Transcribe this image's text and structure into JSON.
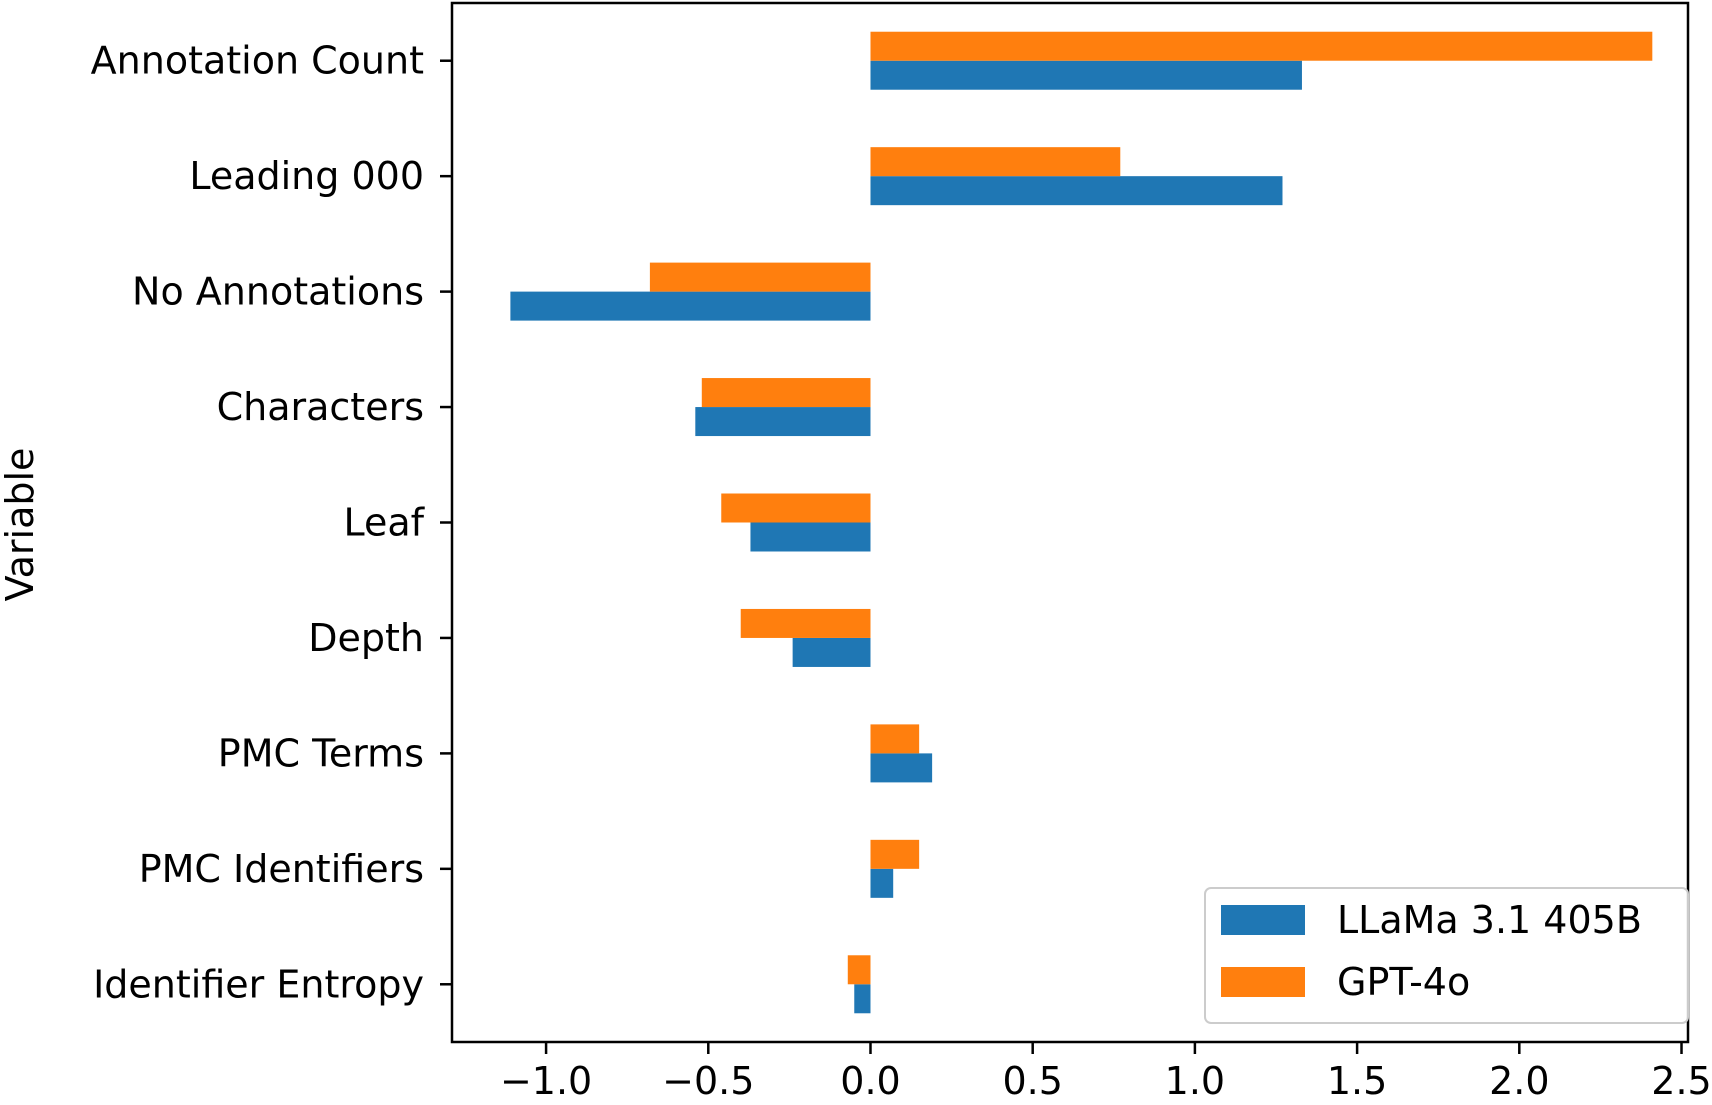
{
  "chart_data": {
    "type": "bar",
    "orientation": "horizontal",
    "title": "",
    "xlabel": "",
    "ylabel": "Variable",
    "categories": [
      "Annotation Count",
      "Leading 000",
      "No Annotations",
      "Characters",
      "Leaf",
      "Depth",
      "PMC Terms",
      "PMC Identifiers",
      "Identifier Entropy"
    ],
    "series": [
      {
        "name": "LLaMa 3.1 405B",
        "color": "#1f77b4",
        "values": [
          1.33,
          1.27,
          -1.11,
          -0.54,
          -0.37,
          -0.24,
          0.19,
          0.07,
          -0.05
        ]
      },
      {
        "name": "GPT-4o",
        "color": "#ff7f0e",
        "values": [
          2.41,
          0.77,
          -0.68,
          -0.52,
          -0.46,
          -0.4,
          0.15,
          0.15,
          -0.07
        ]
      }
    ],
    "xlim": [
      -1.29,
      2.52
    ],
    "xticks": [
      -1.0,
      -0.5,
      0.0,
      0.5,
      1.0,
      1.5,
      2.0,
      2.5
    ],
    "xtick_labels": [
      "−1.0",
      "−0.5",
      "0.0",
      "0.5",
      "1.0",
      "1.5",
      "2.0",
      "2.5"
    ],
    "grid": false,
    "legend_position": "lower-right"
  }
}
